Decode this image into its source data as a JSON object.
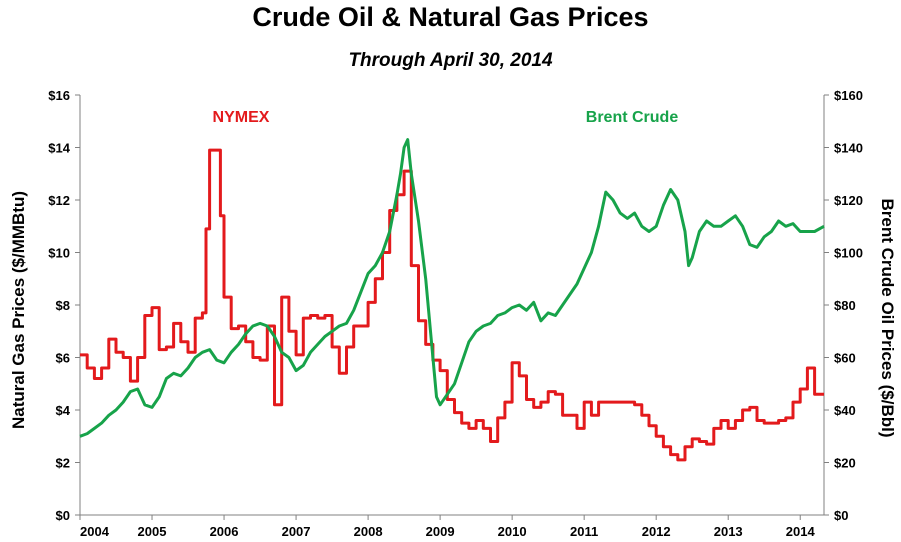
{
  "chart_data": {
    "type": "line",
    "title": "Crude Oil & Natural Gas Prices",
    "subtitle": "Through April 30, 2014",
    "xlabel": "",
    "ylabel_left": "Natural Gas Prices ($/MMBtu)",
    "ylabel_right": "Brent Crude Oil Prices ($/Bbl)",
    "xlim": [
      2004.0,
      2014.33
    ],
    "ylim_left": [
      0,
      16
    ],
    "ylim_right": [
      0,
      160
    ],
    "x_ticks": [
      "2004",
      "2005",
      "2006",
      "2007",
      "2008",
      "2009",
      "2010",
      "2011",
      "2012",
      "2013",
      "2014"
    ],
    "y_ticks_left": [
      "$0",
      "$2",
      "$4",
      "$6",
      "$8",
      "$10",
      "$12",
      "$14",
      "$16"
    ],
    "y_ticks_right": [
      "$0",
      "$20",
      "$40",
      "$60",
      "$80",
      "$100",
      "$120",
      "$140",
      "$160"
    ],
    "grid": false,
    "colors": {
      "nymex": "#e31a1c",
      "brent": "#17a34a",
      "axis": "#808080"
    },
    "series": [
      {
        "name": "NYMEX",
        "axis": "left",
        "step": true,
        "x": [
          2004.0,
          2004.1,
          2004.2,
          2004.3,
          2004.4,
          2004.5,
          2004.6,
          2004.7,
          2004.8,
          2004.9,
          2005.0,
          2005.1,
          2005.2,
          2005.3,
          2005.4,
          2005.5,
          2005.6,
          2005.7,
          2005.75,
          2005.8,
          2005.95,
          2006.0,
          2006.1,
          2006.2,
          2006.3,
          2006.4,
          2006.5,
          2006.6,
          2006.7,
          2006.8,
          2006.9,
          2007.0,
          2007.1,
          2007.2,
          2007.3,
          2007.4,
          2007.5,
          2007.6,
          2007.7,
          2007.8,
          2007.9,
          2008.0,
          2008.1,
          2008.2,
          2008.3,
          2008.4,
          2008.5,
          2008.6,
          2008.7,
          2008.8,
          2008.9,
          2009.0,
          2009.1,
          2009.2,
          2009.3,
          2009.4,
          2009.5,
          2009.6,
          2009.7,
          2009.8,
          2009.9,
          2010.0,
          2010.1,
          2010.2,
          2010.3,
          2010.4,
          2010.5,
          2010.6,
          2010.7,
          2010.8,
          2010.9,
          2011.0,
          2011.1,
          2011.2,
          2011.3,
          2011.4,
          2011.5,
          2011.6,
          2011.7,
          2011.8,
          2011.9,
          2012.0,
          2012.1,
          2012.2,
          2012.3,
          2012.4,
          2012.5,
          2012.6,
          2012.7,
          2012.8,
          2012.9,
          2013.0,
          2013.1,
          2013.2,
          2013.3,
          2013.4,
          2013.5,
          2013.6,
          2013.7,
          2013.8,
          2013.9,
          2014.0,
          2014.1,
          2014.2,
          2014.3
        ],
        "y": [
          6.1,
          5.6,
          5.2,
          5.6,
          6.7,
          6.2,
          6.0,
          5.1,
          6.0,
          7.6,
          7.9,
          6.3,
          6.4,
          7.3,
          6.6,
          6.2,
          7.5,
          7.7,
          10.9,
          13.9,
          11.4,
          8.3,
          7.1,
          7.2,
          6.6,
          6.0,
          5.9,
          7.2,
          4.2,
          8.3,
          7.0,
          6.1,
          7.5,
          7.6,
          7.5,
          7.6,
          6.4,
          5.4,
          6.4,
          7.2,
          7.2,
          8.1,
          9.0,
          10.0,
          11.6,
          12.2,
          13.1,
          9.5,
          7.4,
          6.5,
          5.9,
          5.5,
          4.4,
          3.9,
          3.5,
          3.3,
          3.6,
          3.3,
          2.8,
          3.7,
          4.3,
          5.8,
          5.3,
          4.4,
          4.1,
          4.3,
          4.7,
          4.6,
          3.8,
          3.8,
          3.3,
          4.3,
          3.8,
          4.3,
          4.3,
          4.3,
          4.3,
          4.3,
          4.2,
          3.8,
          3.4,
          3.0,
          2.6,
          2.3,
          2.1,
          2.6,
          2.9,
          2.8,
          2.7,
          3.3,
          3.6,
          3.3,
          3.6,
          4.0,
          4.1,
          3.6,
          3.5,
          3.5,
          3.6,
          3.7,
          4.3,
          4.8,
          5.6,
          4.6,
          4.6
        ]
      },
      {
        "name": "Brent Crude",
        "axis": "right",
        "step": false,
        "x": [
          2004.0,
          2004.1,
          2004.2,
          2004.3,
          2004.4,
          2004.5,
          2004.6,
          2004.7,
          2004.8,
          2004.9,
          2005.0,
          2005.1,
          2005.2,
          2005.3,
          2005.4,
          2005.5,
          2005.6,
          2005.7,
          2005.8,
          2005.9,
          2006.0,
          2006.1,
          2006.2,
          2006.3,
          2006.4,
          2006.5,
          2006.6,
          2006.7,
          2006.8,
          2006.9,
          2007.0,
          2007.1,
          2007.2,
          2007.3,
          2007.4,
          2007.5,
          2007.6,
          2007.7,
          2007.8,
          2007.9,
          2008.0,
          2008.1,
          2008.2,
          2008.3,
          2008.4,
          2008.45,
          2008.5,
          2008.55,
          2008.6,
          2008.7,
          2008.8,
          2008.9,
          2008.95,
          2009.0,
          2009.1,
          2009.2,
          2009.3,
          2009.4,
          2009.5,
          2009.6,
          2009.7,
          2009.8,
          2009.9,
          2010.0,
          2010.1,
          2010.2,
          2010.3,
          2010.4,
          2010.5,
          2010.6,
          2010.7,
          2010.8,
          2010.9,
          2011.0,
          2011.1,
          2011.2,
          2011.3,
          2011.4,
          2011.5,
          2011.6,
          2011.7,
          2011.8,
          2011.9,
          2012.0,
          2012.1,
          2012.2,
          2012.3,
          2012.4,
          2012.45,
          2012.5,
          2012.6,
          2012.7,
          2012.8,
          2012.9,
          2013.0,
          2013.1,
          2013.2,
          2013.3,
          2013.4,
          2013.5,
          2013.6,
          2013.7,
          2013.8,
          2013.9,
          2014.0,
          2014.1,
          2014.2,
          2014.33
        ],
        "y": [
          30,
          31,
          33,
          35,
          38,
          40,
          43,
          47,
          48,
          42,
          41,
          45,
          52,
          54,
          53,
          56,
          60,
          62,
          63,
          59,
          58,
          62,
          65,
          69,
          72,
          73,
          72,
          68,
          62,
          60,
          55,
          57,
          62,
          65,
          68,
          70,
          72,
          73,
          78,
          85,
          92,
          95,
          100,
          108,
          122,
          130,
          140,
          143,
          130,
          112,
          90,
          60,
          45,
          42,
          46,
          50,
          58,
          66,
          70,
          72,
          73,
          76,
          77,
          79,
          80,
          78,
          81,
          74,
          77,
          76,
          80,
          84,
          88,
          94,
          100,
          110,
          123,
          120,
          115,
          113,
          115,
          110,
          108,
          110,
          118,
          124,
          120,
          108,
          95,
          98,
          108,
          112,
          110,
          110,
          112,
          114,
          110,
          103,
          102,
          106,
          108,
          112,
          110,
          111,
          108,
          108,
          108,
          110
        ]
      }
    ],
    "annotations": [
      {
        "text": "NYMEX",
        "series": "NYMEX"
      },
      {
        "text": "Brent Crude",
        "series": "Brent Crude"
      }
    ]
  }
}
